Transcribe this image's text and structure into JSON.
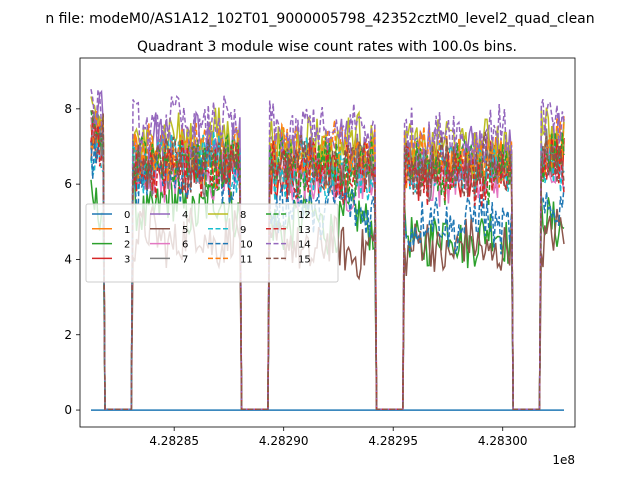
{
  "figure": {
    "suptitle": "n file: modeM0/AS1A12_102T01_9000005798_42352cztM0_level2_quad_clean",
    "title": "Quadrant 3 module wise count rates with 100.0s bins.",
    "x_offset_label": "1e8"
  },
  "chart_data": {
    "type": "line",
    "title": "Quadrant 3 module wise count rates with 100.0s bins.",
    "xlabel": "",
    "ylabel": "",
    "xlim": [
      4.282807,
      4.283033
    ],
    "ylim": [
      -0.45,
      9.35
    ],
    "x_ticks": [
      4.28285,
      4.2829,
      4.28295,
      4.283
    ],
    "x_tick_labels": [
      "4.28285",
      "4.28290",
      "4.28295",
      "4.28300"
    ],
    "y_ticks": [
      0,
      2,
      4,
      6,
      8
    ],
    "y_tick_labels": [
      "0",
      "2",
      "4",
      "6",
      "8"
    ],
    "x_scale_label": "1e8",
    "grid": false,
    "legend": {
      "placement": "center-left",
      "ncol": 4
    },
    "gaps": [
      [
        4.282818,
        4.282831
      ],
      [
        4.28288,
        4.282893
      ],
      [
        4.282942,
        4.282955
      ],
      [
        4.283004,
        4.283017
      ]
    ],
    "series": [
      {
        "name": "0",
        "color": "#1f77b4",
        "style": "solid",
        "constant": 0
      },
      {
        "name": "1",
        "color": "#ff7f0e",
        "style": "solid",
        "segment_means": [
          7.2,
          6.7,
          6.4,
          6.6,
          6.8
        ]
      },
      {
        "name": "2",
        "color": "#2ca02c",
        "style": "solid",
        "segment_means": [
          5.6,
          5.4,
          5.0,
          4.6,
          5.1
        ]
      },
      {
        "name": "3",
        "color": "#d62728",
        "style": "solid",
        "segment_means": [
          7.4,
          6.5,
          6.5,
          6.4,
          6.6
        ]
      },
      {
        "name": "4",
        "color": "#9467bd",
        "style": "solid",
        "segment_means": [
          7.8,
          7.1,
          7.0,
          6.9,
          7.2
        ]
      },
      {
        "name": "5",
        "color": "#8c564b",
        "style": "solid",
        "segment_means": [
          7.0,
          4.6,
          4.3,
          4.3,
          4.6
        ]
      },
      {
        "name": "6",
        "color": "#e377c2",
        "style": "solid",
        "segment_means": [
          7.1,
          6.3,
          6.1,
          6.2,
          6.4
        ]
      },
      {
        "name": "7",
        "color": "#7f7f7f",
        "style": "solid",
        "segment_means": [
          7.3,
          6.5,
          6.4,
          6.4,
          6.6
        ]
      },
      {
        "name": "8",
        "color": "#bcbd22",
        "style": "solid",
        "segment_means": [
          7.9,
          7.2,
          7.1,
          7.0,
          7.3
        ]
      },
      {
        "name": "9",
        "color": "#17becf",
        "style": "dashed",
        "segment_means": [
          7.1,
          6.6,
          6.4,
          6.4,
          6.6
        ]
      },
      {
        "name": "10",
        "color": "#1f77b4",
        "style": "dashed",
        "segment_means": [
          6.9,
          6.3,
          5.4,
          5.0,
          5.4
        ]
      },
      {
        "name": "11",
        "color": "#ff7f0e",
        "style": "dashed",
        "segment_means": [
          7.5,
          6.8,
          6.8,
          6.7,
          7.0
        ]
      },
      {
        "name": "12",
        "color": "#2ca02c",
        "style": "dashed",
        "segment_means": [
          7.2,
          6.5,
          6.4,
          6.3,
          6.6
        ]
      },
      {
        "name": "13",
        "color": "#d62728",
        "style": "dashed",
        "segment_means": [
          7.0,
          6.4,
          6.3,
          6.2,
          6.5
        ]
      },
      {
        "name": "14",
        "color": "#9467bd",
        "style": "dashed",
        "segment_means": [
          8.1,
          7.5,
          7.4,
          7.3,
          7.6
        ]
      },
      {
        "name": "15",
        "color": "#8c564b",
        "style": "dashed",
        "segment_means": [
          7.6,
          6.6,
          6.5,
          6.5,
          6.7
        ]
      }
    ]
  }
}
